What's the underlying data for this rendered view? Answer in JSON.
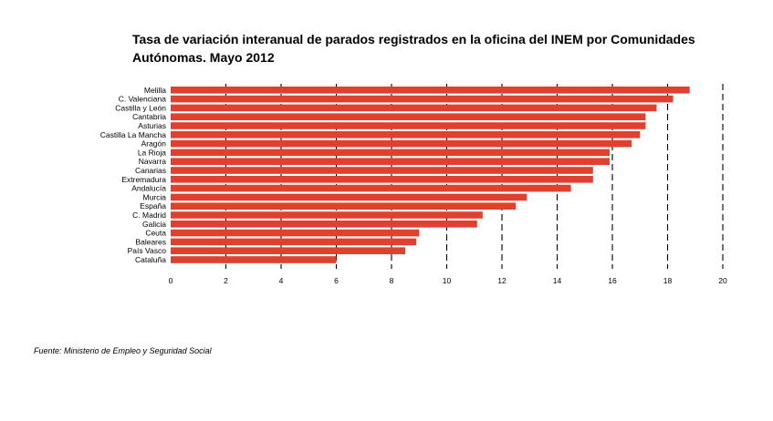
{
  "title": "Tasa de variación interanual de parados registrados en la oficina del INEM por Comunidades Autónomas. Mayo 2012",
  "source": "Fuente: Ministerio de Empleo y Seguridad Social",
  "colors": {
    "bar": "#e0402e",
    "grid": "#000000"
  },
  "chart_data": {
    "type": "bar",
    "orientation": "horizontal",
    "title": "Tasa de variación interanual de parados registrados en la oficina del INEM por Comunidades Autónomas. Mayo 2012",
    "xlabel": "",
    "ylabel": "",
    "xlim": [
      0,
      20
    ],
    "xticks": [
      0,
      2,
      4,
      6,
      8,
      10,
      12,
      14,
      16,
      18,
      20
    ],
    "grid": "vertical dashed",
    "categories": [
      "Melilla",
      "C. Valenciana",
      "Castilla y León",
      "Cantabria",
      "Asturias",
      "Castilla La Mancha",
      "Aragón",
      "La Rioja",
      "Navarra",
      "Canarias",
      "Extremadura",
      "Andalucía",
      "Murcia",
      "España",
      "C. Madrid",
      "Galicia",
      "Ceuta",
      "Baleares",
      "País Vasco",
      "Cataluña"
    ],
    "values": [
      18.8,
      18.2,
      17.6,
      17.2,
      17.2,
      17.0,
      16.7,
      15.9,
      15.9,
      15.3,
      15.3,
      14.5,
      12.9,
      12.5,
      11.3,
      11.1,
      9.0,
      8.9,
      8.5,
      6.0
    ]
  }
}
